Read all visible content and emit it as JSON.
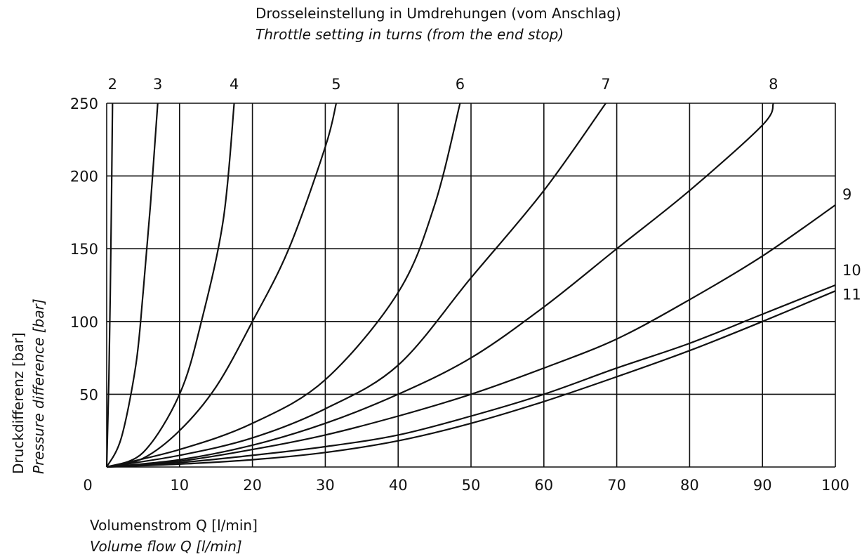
{
  "chart_data": {
    "type": "line",
    "title_de": "Drosseleinstellung in Umdrehungen (vom Anschlag)",
    "title_en": "Throttle setting in turns (from the end stop)",
    "xlabel_de": "Volumenstrom Q [l/min]",
    "xlabel_en": "Volume flow Q [l/min]",
    "ylabel_de": "Druckdifferenz [bar]",
    "ylabel_en": "Pressure difference [bar]",
    "xlim": [
      0,
      100
    ],
    "ylim": [
      0,
      250
    ],
    "x_ticks": [
      "0",
      "10",
      "20",
      "30",
      "40",
      "50",
      "60",
      "70",
      "80",
      "90",
      "100"
    ],
    "y_ticks": [
      "50",
      "100",
      "150",
      "200",
      "250"
    ],
    "grid": true,
    "series": [
      {
        "name": "2",
        "label": "2",
        "x": [
          0,
          0.3,
          0.6,
          0.8
        ],
        "y": [
          0,
          60,
          160,
          250
        ]
      },
      {
        "name": "3",
        "label": "3",
        "x": [
          0,
          2,
          4,
          5,
          6,
          7
        ],
        "y": [
          0,
          20,
          70,
          120,
          180,
          250
        ]
      },
      {
        "name": "4",
        "label": "4",
        "x": [
          0,
          5,
          10,
          13,
          16,
          17.5
        ],
        "y": [
          0,
          10,
          50,
          100,
          170,
          250
        ]
      },
      {
        "name": "5",
        "label": "5",
        "x": [
          0,
          5,
          10,
          15,
          20,
          25,
          30,
          31.5
        ],
        "y": [
          0,
          6,
          25,
          55,
          100,
          150,
          220,
          250
        ]
      },
      {
        "name": "6",
        "label": "6",
        "x": [
          0,
          10,
          20,
          30,
          40,
          45,
          48.5
        ],
        "y": [
          0,
          12,
          30,
          60,
          120,
          180,
          250
        ]
      },
      {
        "name": "7",
        "label": "7",
        "x": [
          0,
          10,
          20,
          30,
          40,
          50,
          60,
          68.5
        ],
        "y": [
          0,
          8,
          20,
          40,
          70,
          130,
          190,
          250
        ]
      },
      {
        "name": "8",
        "label": "8",
        "x": [
          0,
          10,
          20,
          30,
          40,
          50,
          60,
          70,
          80,
          90,
          91.5
        ],
        "y": [
          0,
          5,
          15,
          30,
          50,
          75,
          110,
          150,
          190,
          235,
          250
        ]
      },
      {
        "name": "9",
        "label": "9",
        "x": [
          0,
          10,
          20,
          30,
          40,
          50,
          60,
          70,
          80,
          90,
          100
        ],
        "y": [
          0,
          4,
          12,
          22,
          35,
          50,
          68,
          88,
          115,
          145,
          180
        ]
      },
      {
        "name": "10",
        "label": "10",
        "x": [
          0,
          10,
          20,
          30,
          40,
          50,
          60,
          70,
          80,
          90,
          100
        ],
        "y": [
          0,
          3,
          8,
          14,
          22,
          35,
          50,
          68,
          85,
          105,
          125
        ]
      },
      {
        "name": "11",
        "label": "11",
        "x": [
          0,
          10,
          20,
          30,
          40,
          50,
          60,
          70,
          80,
          90,
          100
        ],
        "y": [
          0,
          2,
          5,
          10,
          18,
          30,
          45,
          62,
          80,
          100,
          121
        ]
      }
    ]
  }
}
